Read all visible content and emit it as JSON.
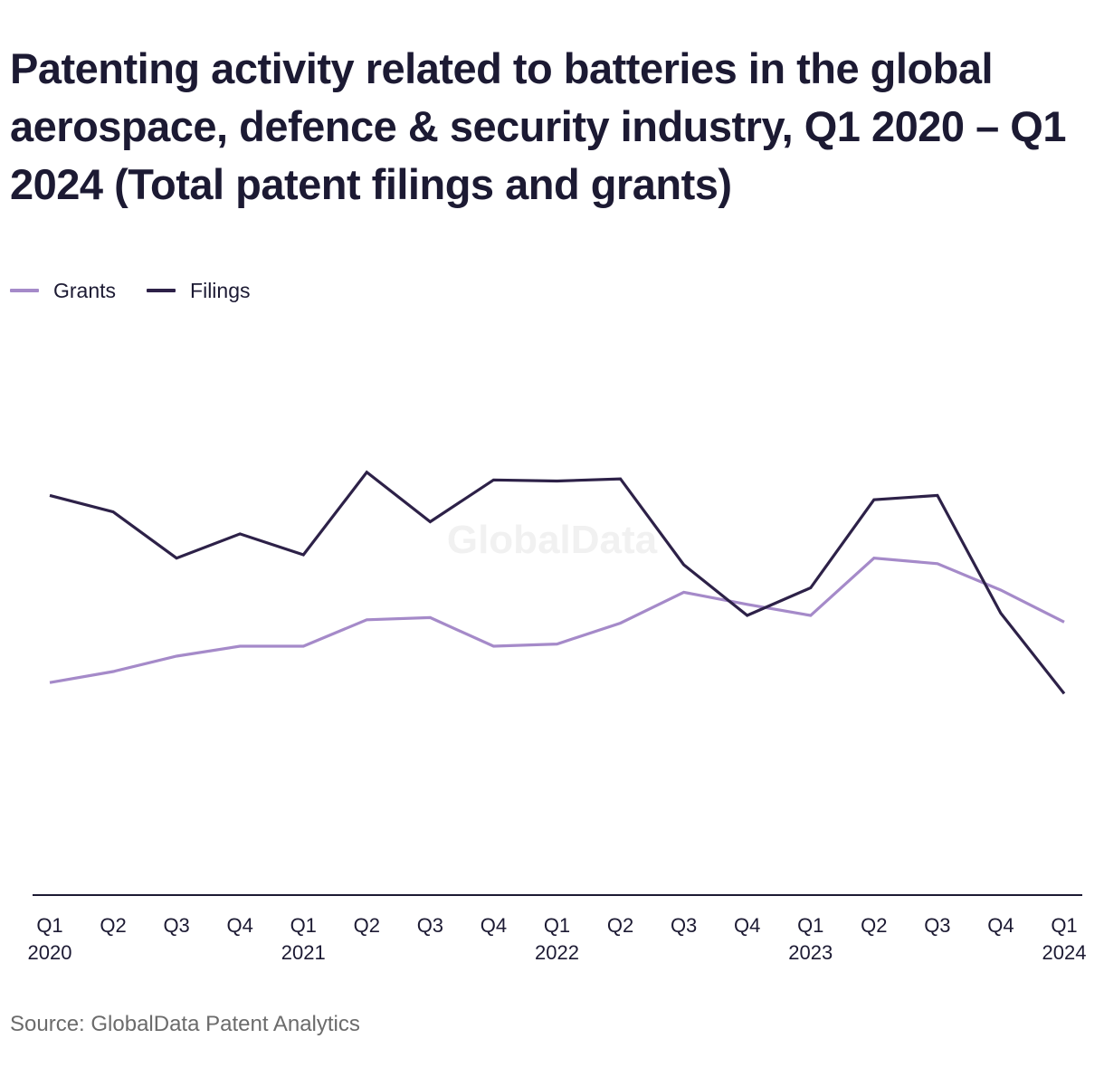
{
  "title": "Patenting activity related to batteries in the global aerospace, defence & security industry, Q1 2020 – Q1 2024 (Total patent filings and grants)",
  "watermark": "GlobalData",
  "source": "Source: GlobalData Patent Analytics",
  "colors": {
    "grants": "#a58ac9",
    "filings": "#2d2148",
    "axis": "#1c1a33"
  },
  "legend": [
    {
      "name": "Grants",
      "color": "#a58ac9"
    },
    {
      "name": "Filings",
      "color": "#2d2148"
    }
  ],
  "chart_data": {
    "type": "line",
    "title": "Patenting activity related to batteries in the global aerospace, defence & security industry, Q1 2020 – Q1 2024 (Total patent filings and grants)",
    "xlabel": "",
    "ylabel": "",
    "ylim": [
      0,
      600
    ],
    "grid": false,
    "legend_position": "top-left",
    "y_axis_labels_shown": false,
    "categories": [
      [
        "Q1",
        "2020"
      ],
      [
        "Q2",
        ""
      ],
      [
        "Q3",
        ""
      ],
      [
        "Q4",
        ""
      ],
      [
        "Q1",
        "2021"
      ],
      [
        "Q2",
        ""
      ],
      [
        "Q3",
        ""
      ],
      [
        "Q4",
        ""
      ],
      [
        "Q1",
        "2022"
      ],
      [
        "Q2",
        ""
      ],
      [
        "Q3",
        ""
      ],
      [
        "Q4",
        ""
      ],
      [
        "Q1",
        "2023"
      ],
      [
        "Q2",
        ""
      ],
      [
        "Q3",
        ""
      ],
      [
        "Q4",
        ""
      ],
      [
        "Q1",
        "2024"
      ]
    ],
    "series": [
      {
        "name": "Grants",
        "color": "#a58ac9",
        "values": [
          193,
          203,
          217,
          226,
          226,
          250,
          252,
          226,
          228,
          247,
          275,
          264,
          254,
          306,
          301,
          277,
          248
        ]
      },
      {
        "name": "Filings",
        "color": "#2d2148",
        "values": [
          363,
          348,
          306,
          328,
          309,
          384,
          339,
          377,
          376,
          378,
          300,
          254,
          279,
          359,
          363,
          256,
          183
        ]
      }
    ]
  }
}
